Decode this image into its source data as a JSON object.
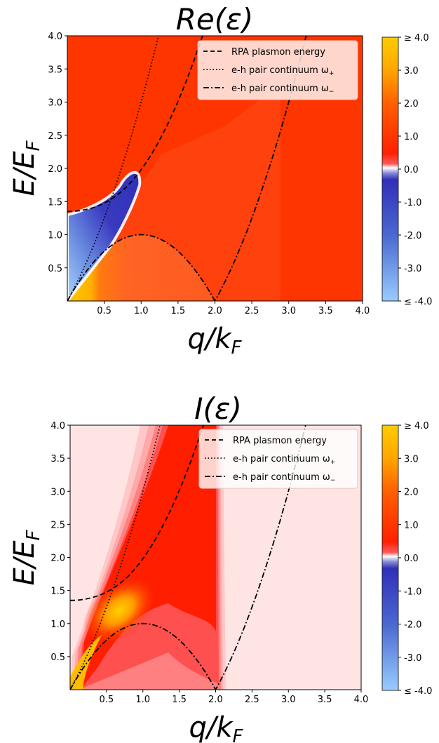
{
  "chart_data": [
    {
      "type": "heatmap",
      "title": "Re(ε)",
      "title_parts": {
        "main": "Re(",
        "symbol": "ε",
        "close": ")"
      },
      "xlabel_parts": {
        "base": "q/k",
        "sub": "F"
      },
      "ylabel_parts": {
        "base": "E/E",
        "sub": "F"
      },
      "xlim": [
        0,
        4.0
      ],
      "ylim": [
        0,
        4.0
      ],
      "xticks": [
        "0.5",
        "1.0",
        "1.5",
        "2.0",
        "2.5",
        "3.0",
        "3.5",
        "4.0"
      ],
      "xtick_values": [
        0.5,
        1.0,
        1.5,
        2.0,
        2.5,
        3.0,
        3.5,
        4.0
      ],
      "yticks": [
        "0.5",
        "1.0",
        "1.5",
        "2.0",
        "2.5",
        "3.0",
        "3.5",
        "4.0"
      ],
      "ytick_values": [
        0.5,
        1.0,
        1.5,
        2.0,
        2.5,
        3.0,
        3.5,
        4.0
      ],
      "colorbar": {
        "range": [
          -4.0,
          4.0
        ],
        "labels": [
          "≥ 4.0",
          "3.0",
          "2.0",
          "1.0",
          "0.0",
          "-1.0",
          "-2.0",
          "-3.0",
          "≤ -4.0"
        ],
        "colors": [
          "#ffcc00",
          "#ff6000",
          "#ff2000",
          "#ffffff",
          "#3333bb",
          "#99ccff"
        ]
      },
      "legend_position": "top-right",
      "series": [
        {
          "name": "RPA plasmon energy",
          "style": "dashed"
        },
        {
          "name": "e-h pair continuum ω",
          "sub": "+",
          "style": "dotted"
        },
        {
          "name": "e-h pair continuum ω",
          "sub": "−",
          "style": "dashdot"
        }
      ],
      "curves": {
        "plasmon": {
          "x": [
            0,
            0.2,
            0.4,
            0.6,
            0.8,
            1.0,
            1.2,
            1.4,
            1.6,
            1.8,
            2.0,
            2.2,
            2.33
          ],
          "y": [
            1.35,
            1.39,
            1.49,
            1.66,
            1.89,
            2.17,
            2.5,
            2.88,
            3.29,
            3.74,
            4.0,
            4.0,
            4.0
          ]
        },
        "omega_plus": {
          "q_max": 1.24
        },
        "omega_minus": {
          "q_max": 3.24
        }
      }
    },
    {
      "type": "heatmap",
      "title": "I(ε)",
      "title_parts": {
        "main": "I(",
        "symbol": "ε",
        "close": ")"
      },
      "xlabel_parts": {
        "base": "q/k",
        "sub": "F"
      },
      "ylabel_parts": {
        "base": "E/E",
        "sub": "F"
      },
      "xlim": [
        0,
        4.0
      ],
      "ylim": [
        0,
        4.0
      ],
      "xticks": [
        "0.5",
        "1.0",
        "1.5",
        "2.0",
        "2.5",
        "3.0",
        "3.5",
        "4.0"
      ],
      "xtick_values": [
        0.5,
        1.0,
        1.5,
        2.0,
        2.5,
        3.0,
        3.5,
        4.0
      ],
      "yticks": [
        "0.5",
        "1.0",
        "1.5",
        "2.0",
        "2.5",
        "3.0",
        "3.5",
        "4.0"
      ],
      "ytick_values": [
        0.5,
        1.0,
        1.5,
        2.0,
        2.5,
        3.0,
        3.5,
        4.0
      ],
      "colorbar": {
        "range": [
          -4.0,
          4.0
        ],
        "labels": [
          "≥ 4.0",
          "3.0",
          "2.0",
          "1.0",
          "0.0",
          "-1.0",
          "-2.0",
          "-3.0",
          "≤ -4.0"
        ],
        "colors": [
          "#ffcc00",
          "#ff6000",
          "#ff2000",
          "#ffffff",
          "#3333bb",
          "#99ccff"
        ]
      },
      "legend_position": "top-right",
      "series": [
        {
          "name": "RPA plasmon energy",
          "style": "dashed"
        },
        {
          "name": "e-h pair continuum ω",
          "sub": "+",
          "style": "dotted"
        },
        {
          "name": "e-h pair continuum ω",
          "sub": "−",
          "style": "dashdot"
        }
      ],
      "curves": {
        "plasmon": {
          "x": [
            0,
            0.2,
            0.4,
            0.6,
            0.8,
            1.0,
            1.2,
            1.4,
            1.6,
            1.8,
            2.0
          ],
          "y": [
            1.35,
            1.39,
            1.49,
            1.66,
            1.89,
            2.17,
            2.5,
            2.88,
            3.29,
            3.74,
            4.0
          ]
        },
        "omega_plus": {
          "q_max": 1.24
        },
        "omega_minus": {
          "q_max": 3.24
        }
      }
    }
  ]
}
